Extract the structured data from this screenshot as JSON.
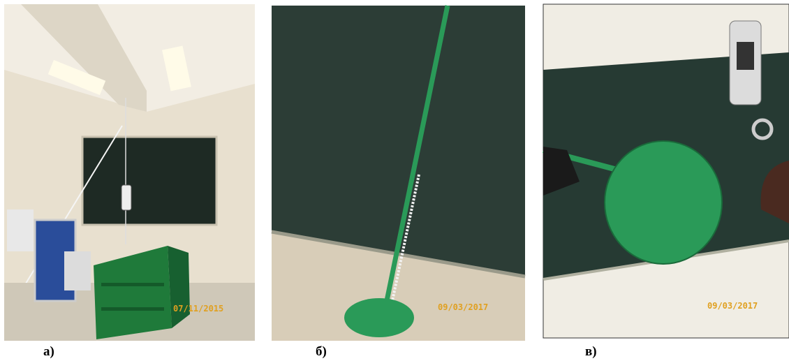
{
  "panels": [
    {
      "label": "а)",
      "date_stamp": "07/11/2015"
    },
    {
      "label": "б)",
      "date_stamp": "09/03/2017"
    },
    {
      "label": "в)",
      "date_stamp": "09/03/2017"
    }
  ]
}
